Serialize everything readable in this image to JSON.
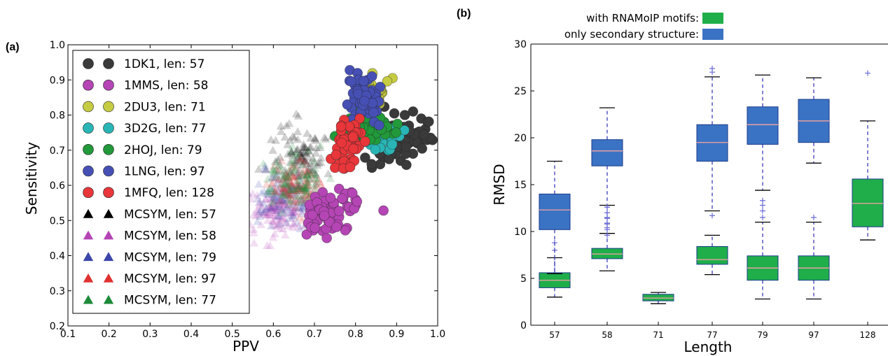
{
  "chart_data": [
    {
      "panel": "(a)",
      "type": "scatter",
      "xlabel": "PPV",
      "ylabel": "Sensitivity",
      "xlim": [
        0.1,
        1.0
      ],
      "ylim": [
        0.2,
        1.0
      ],
      "xticks": [
        "0.1",
        "0.2",
        "0.3",
        "0.4",
        "0.5",
        "0.6",
        "0.7",
        "0.8",
        "0.9",
        "1.0"
      ],
      "yticks": [
        "0.2",
        "0.3",
        "0.4",
        "0.5",
        "0.6",
        "0.7",
        "0.8",
        "0.9",
        "1.0"
      ],
      "legend_position": "upper-left",
      "series": [
        {
          "name": "1DK1, len: 57",
          "marker": "circle",
          "color": "#3a3a3a",
          "center": [
            0.91,
            0.74
          ],
          "spread": [
            0.035,
            0.04
          ],
          "points": [
            [
              0.84,
              0.65
            ],
            [
              0.87,
              0.68
            ],
            [
              0.9,
              0.7
            ],
            [
              0.93,
              0.72
            ],
            [
              0.95,
              0.75
            ],
            [
              0.96,
              0.79
            ],
            [
              0.92,
              0.8
            ],
            [
              0.89,
              0.77
            ],
            [
              0.94,
              0.81
            ],
            [
              0.88,
              0.73
            ],
            [
              0.91,
              0.67
            ],
            [
              0.86,
              0.66
            ],
            [
              0.97,
              0.76
            ],
            [
              0.9,
              0.75
            ],
            [
              0.93,
              0.77
            ],
            [
              0.95,
              0.72
            ],
            [
              0.89,
              0.69
            ],
            [
              0.92,
              0.74
            ],
            [
              0.96,
              0.73
            ],
            [
              0.94,
              0.69
            ]
          ]
        },
        {
          "name": "1MMS, len: 58",
          "marker": "circle",
          "color": "#b545b5",
          "center": [
            0.74,
            0.53
          ],
          "spread": [
            0.04,
            0.035
          ],
          "points": [
            [
              0.7,
              0.49
            ],
            [
              0.72,
              0.47
            ],
            [
              0.73,
              0.45
            ],
            [
              0.75,
              0.52
            ],
            [
              0.77,
              0.56
            ],
            [
              0.79,
              0.58
            ],
            [
              0.76,
              0.59
            ],
            [
              0.71,
              0.51
            ],
            [
              0.74,
              0.5
            ],
            [
              0.78,
              0.54
            ],
            [
              0.69,
              0.53
            ],
            [
              0.73,
              0.55
            ],
            [
              0.76,
              0.51
            ],
            [
              0.8,
              0.56
            ],
            [
              0.72,
              0.58
            ]
          ]
        },
        {
          "name": "2DU3, len: 71",
          "marker": "circle",
          "color": "#c6cc42",
          "center": [
            0.84,
            0.86
          ],
          "spread": [
            0.02,
            0.02
          ],
          "points": [
            [
              0.89,
              0.905
            ],
            [
              0.86,
              0.87
            ],
            [
              0.83,
              0.82
            ],
            [
              0.79,
              0.79
            ]
          ]
        },
        {
          "name": "3D2G, len: 77",
          "marker": "circle",
          "color": "#29b5b5",
          "center": [
            0.86,
            0.74
          ],
          "spread": [
            0.02,
            0.02
          ],
          "points": [
            [
              0.86,
              0.71
            ],
            [
              0.87,
              0.74
            ],
            [
              0.88,
              0.76
            ],
            [
              0.85,
              0.73
            ],
            [
              0.89,
              0.72
            ],
            [
              0.88,
              0.7
            ]
          ]
        },
        {
          "name": "2HOJ, len: 79",
          "marker": "circle",
          "color": "#22993a",
          "center": [
            0.83,
            0.76
          ],
          "spread": [
            0.03,
            0.025
          ],
          "points": [
            [
              0.8,
              0.78
            ],
            [
              0.82,
              0.75
            ],
            [
              0.84,
              0.77
            ],
            [
              0.86,
              0.79
            ],
            [
              0.83,
              0.73
            ],
            [
              0.81,
              0.72
            ],
            [
              0.85,
              0.76
            ],
            [
              0.87,
              0.78
            ],
            [
              0.79,
              0.75
            ],
            [
              0.83,
              0.8
            ]
          ]
        },
        {
          "name": "1LNG, len: 97",
          "marker": "circle",
          "color": "#4650b4",
          "center": [
            0.82,
            0.84
          ],
          "spread": [
            0.025,
            0.035
          ],
          "points": [
            [
              0.79,
              0.82
            ],
            [
              0.8,
              0.86
            ],
            [
              0.81,
              0.88
            ],
            [
              0.83,
              0.9
            ],
            [
              0.84,
              0.87
            ],
            [
              0.82,
              0.83
            ],
            [
              0.85,
              0.85
            ],
            [
              0.8,
              0.8
            ],
            [
              0.83,
              0.81
            ],
            [
              0.86,
              0.88
            ],
            [
              0.81,
              0.84
            ],
            [
              0.84,
              0.91
            ],
            [
              0.78,
              0.83
            ],
            [
              0.82,
              0.89
            ]
          ]
        },
        {
          "name": "1MFQ, len: 128",
          "marker": "circle",
          "color": "#e8363a",
          "center": [
            0.78,
            0.72
          ],
          "spread": [
            0.015,
            0.04
          ],
          "points": [
            [
              0.76,
              0.66
            ],
            [
              0.77,
              0.68
            ],
            [
              0.78,
              0.71
            ],
            [
              0.79,
              0.74
            ],
            [
              0.8,
              0.77
            ],
            [
              0.81,
              0.79
            ],
            [
              0.77,
              0.73
            ],
            [
              0.79,
              0.7
            ],
            [
              0.75,
              0.65
            ],
            [
              0.8,
              0.72
            ]
          ]
        },
        {
          "name": "MCSYM, len: 57",
          "marker": "triangle",
          "color": "#000000",
          "center": [
            0.67,
            0.69
          ],
          "spread": [
            0.04,
            0.05
          ]
        },
        {
          "name": "MCSYM, len: 58",
          "marker": "triangle",
          "color": "#b545b5",
          "center": [
            0.61,
            0.52
          ],
          "spread": [
            0.03,
            0.03
          ]
        },
        {
          "name": "MCSYM, len: 79",
          "marker": "triangle",
          "color": "#3c46aa",
          "center": [
            0.62,
            0.56
          ],
          "spread": [
            0.035,
            0.04
          ]
        },
        {
          "name": "MCSYM, len: 97",
          "marker": "triangle",
          "color": "#e03030",
          "center": [
            0.65,
            0.6
          ],
          "spread": [
            0.03,
            0.03
          ]
        },
        {
          "name": "MCSYM, len: 77",
          "marker": "triangle",
          "color": "#1e8a3a",
          "center": [
            0.65,
            0.61
          ],
          "spread": [
            0.035,
            0.04
          ]
        }
      ]
    },
    {
      "panel": "(b)",
      "type": "box",
      "xlabel": "Length",
      "ylabel": "RMSD",
      "ylim": [
        0,
        30
      ],
      "yticks": [
        "0",
        "5",
        "10",
        "15",
        "20",
        "25",
        "30"
      ],
      "categories": [
        "57",
        "58",
        "71",
        "77",
        "79",
        "97",
        "128"
      ],
      "legend_position": "top",
      "legend": [
        {
          "label": "with RNAMoIP motifs:",
          "color": "#1fae4a"
        },
        {
          "label": "only secondary structure:",
          "color": "#3b73c4"
        }
      ],
      "series": [
        {
          "name": "with RNAMoIP motifs",
          "color": "#1fae4a",
          "boxes": [
            {
              "category": "57",
              "whislo": 3.0,
              "q1": 4.0,
              "med": 4.8,
              "q3": 5.6,
              "whishi": 7.2,
              "fliers": [
                8.0,
                8.8
              ]
            },
            {
              "category": "58",
              "whislo": 5.8,
              "q1": 7.1,
              "med": 7.6,
              "q3": 8.2,
              "whishi": 9.8,
              "fliers": [
                10.4,
                10.9,
                11.5,
                12.0,
                12.6
              ]
            },
            {
              "category": "71",
              "whislo": 2.3,
              "q1": 2.6,
              "med": 2.9,
              "q3": 3.3,
              "whishi": 3.5,
              "fliers": []
            },
            {
              "category": "77",
              "whislo": 5.4,
              "q1": 6.5,
              "med": 7.0,
              "q3": 8.4,
              "whishi": 9.6,
              "fliers": []
            },
            {
              "category": "79",
              "whislo": 2.8,
              "q1": 4.8,
              "med": 6.1,
              "q3": 7.4,
              "whishi": 11.0,
              "fliers": [
                11.5,
                12.2,
                12.8,
                13.3
              ]
            },
            {
              "category": "97",
              "whislo": 2.8,
              "q1": 4.8,
              "med": 6.1,
              "q3": 7.4,
              "whishi": 11.0,
              "fliers": [
                11.5
              ]
            },
            {
              "category": "128",
              "whislo": 9.1,
              "q1": 10.5,
              "med": 13.0,
              "q3": 15.6,
              "whishi": 21.8,
              "fliers": [
                26.9
              ]
            }
          ]
        },
        {
          "name": "only secondary structure",
          "color": "#3b73c4",
          "boxes": [
            {
              "category": "57",
              "whislo": 5.5,
              "q1": 10.2,
              "med": 12.3,
              "q3": 14.0,
              "whishi": 17.5,
              "fliers": []
            },
            {
              "category": "58",
              "whislo": 12.8,
              "q1": 17.0,
              "med": 18.6,
              "q3": 19.8,
              "whishi": 23.2,
              "fliers": [
                9.6,
                10.2,
                10.8,
                11.4,
                12.0,
                12.6
              ]
            },
            {
              "category": "77",
              "whislo": 12.2,
              "q1": 17.5,
              "med": 19.5,
              "q3": 21.4,
              "whishi": 26.5,
              "fliers": [
                11.7,
                27.0,
                27.4
              ]
            },
            {
              "category": "79",
              "whislo": 14.4,
              "q1": 19.3,
              "med": 21.4,
              "q3": 23.3,
              "whishi": 26.7,
              "fliers": []
            },
            {
              "category": "97",
              "whislo": 17.3,
              "q1": 19.5,
              "med": 21.8,
              "q3": 24.1,
              "whishi": 26.4,
              "fliers": []
            }
          ]
        }
      ]
    }
  ]
}
